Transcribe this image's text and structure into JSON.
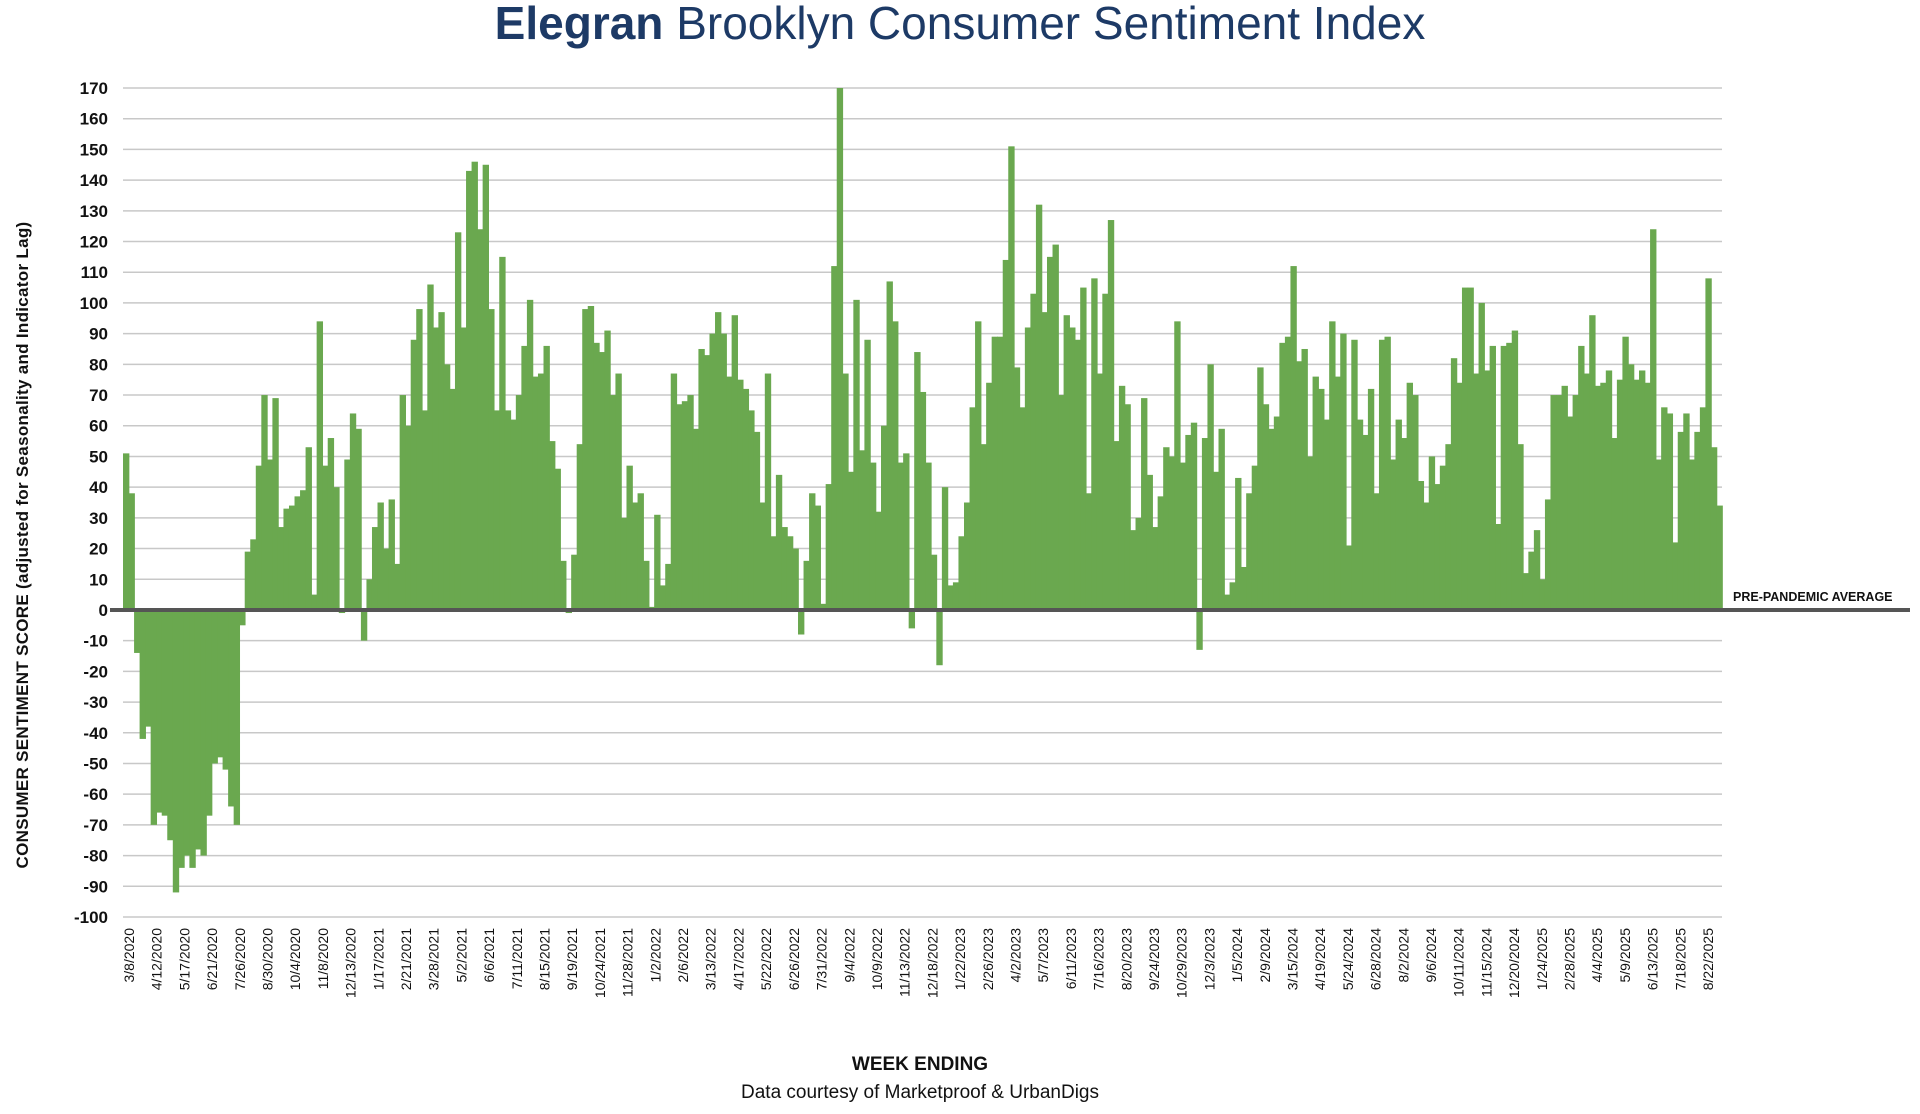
{
  "chart_data": {
    "type": "bar",
    "title_brand": "Elegran",
    "title": "Brooklyn Consumer Sentiment Index",
    "xlabel": "WEEK ENDING",
    "ylabel": "CONSUMER SENTIMENT SCORE (adjusted for Seasonality and Indicator Lag)",
    "source": "Data courtesy of Marketproof & UrbanDigs",
    "baseline_label": "PRE-PANDEMIC AVERAGE",
    "baseline_value": 0,
    "ylim": [
      -100,
      170
    ],
    "yticks": [
      170,
      160,
      150,
      140,
      130,
      120,
      110,
      100,
      90,
      80,
      70,
      60,
      50,
      40,
      30,
      20,
      10,
      0,
      -10,
      -20,
      -30,
      -40,
      -50,
      -60,
      -70,
      -80,
      -90,
      -100
    ],
    "grid": true,
    "bar_color": "#6aa84f",
    "grid_color": "#c8c8c8",
    "baseline_color": "#555555",
    "x_tick_labels": [
      "3/8/2020",
      "4/12/2020",
      "5/17/2020",
      "6/21/2020",
      "7/26/2020",
      "8/30/2020",
      "10/4/2020",
      "11/8/2020",
      "12/13/2020",
      "1/17/2021",
      "2/21/2021",
      "3/28/2021",
      "5/2/2021",
      "6/6/2021",
      "7/11/2021",
      "8/15/2021",
      "9/19/2021",
      "10/24/2021",
      "11/28/2021",
      "1/2/2022",
      "2/6/2022",
      "3/13/2022",
      "4/17/2022",
      "5/22/2022",
      "6/26/2022",
      "7/31/2022",
      "9/4/2022",
      "10/9/2022",
      "11/13/2022",
      "12/18/2022",
      "1/22/2023",
      "2/26/2023",
      "4/2/2023",
      "5/7/2023",
      "6/11/2023",
      "7/16/2023",
      "8/20/2023",
      "9/24/2023",
      "10/29/2023",
      "12/3/2023",
      "1/5/2024",
      "2/9/2024",
      "3/15/2024",
      "4/19/2024",
      "5/24/2024",
      "6/28/2024",
      "8/2/2024",
      "9/6/2024",
      "10/11/2024",
      "11/15/2024",
      "12/20/2024",
      "1/24/2025",
      "2/28/2025",
      "4/4/2025",
      "5/9/2025",
      "6/13/2025",
      "7/18/2025",
      "8/22/2025"
    ],
    "values": [
      51,
      38,
      -14,
      -42,
      -38,
      -70,
      -66,
      -67,
      -75,
      -92,
      -84,
      -80,
      -84,
      -78,
      -80,
      -67,
      -50,
      -48,
      -52,
      -64,
      -70,
      -5,
      19,
      23,
      47,
      70,
      49,
      69,
      27,
      33,
      34,
      37,
      39,
      53,
      5,
      94,
      47,
      56,
      40,
      -1,
      49,
      64,
      59,
      -10,
      10,
      27,
      35,
      20,
      36,
      15,
      70,
      60,
      88,
      98,
      65,
      106,
      92,
      97,
      80,
      72,
      123,
      92,
      143,
      146,
      124,
      145,
      98,
      65,
      115,
      65,
      62,
      70,
      86,
      101,
      76,
      77,
      86,
      55,
      46,
      16,
      -1,
      18,
      54,
      98,
      99,
      87,
      84,
      91,
      70,
      77,
      30,
      47,
      35,
      38,
      16,
      1,
      31,
      8,
      15,
      77,
      67,
      68,
      70,
      59,
      85,
      83,
      90,
      97,
      90,
      76,
      96,
      75,
      72,
      65,
      58,
      35,
      77,
      24,
      44,
      27,
      24,
      20,
      -8,
      16,
      38,
      34,
      2,
      41,
      112,
      170,
      77,
      45,
      101,
      52,
      88,
      48,
      32,
      60,
      107,
      94,
      48,
      51,
      -6,
      84,
      71,
      48,
      18,
      -18,
      40,
      8,
      9,
      24,
      35,
      66,
      94,
      54,
      74,
      89,
      89,
      114,
      151,
      79,
      66,
      92,
      103,
      132,
      97,
      115,
      119,
      70,
      96,
      92,
      88,
      105,
      38,
      108,
      77,
      103,
      127,
      55,
      73,
      67,
      26,
      30,
      69,
      44,
      27,
      37,
      53,
      50,
      94,
      48,
      57,
      61,
      -13,
      56,
      80,
      45,
      59,
      5,
      9,
      43,
      14,
      38,
      47,
      79,
      67,
      59,
      63,
      87,
      89,
      112,
      81,
      85,
      50,
      76,
      72,
      62,
      94,
      76,
      90,
      21,
      88,
      62,
      57,
      72,
      38,
      88,
      89,
      49,
      62,
      56,
      74,
      70,
      42,
      35,
      50,
      41,
      47,
      54,
      82,
      74,
      105,
      105,
      77,
      100,
      78,
      86,
      28,
      86,
      87,
      91,
      54,
      12,
      19,
      26,
      10,
      36,
      70,
      70,
      73,
      63,
      70,
      86,
      77,
      96,
      73,
      74,
      78,
      56,
      75,
      89,
      80,
      75,
      78,
      74,
      124,
      49,
      66,
      64,
      22,
      58,
      64,
      49,
      58,
      66,
      108,
      53,
      34
    ]
  }
}
